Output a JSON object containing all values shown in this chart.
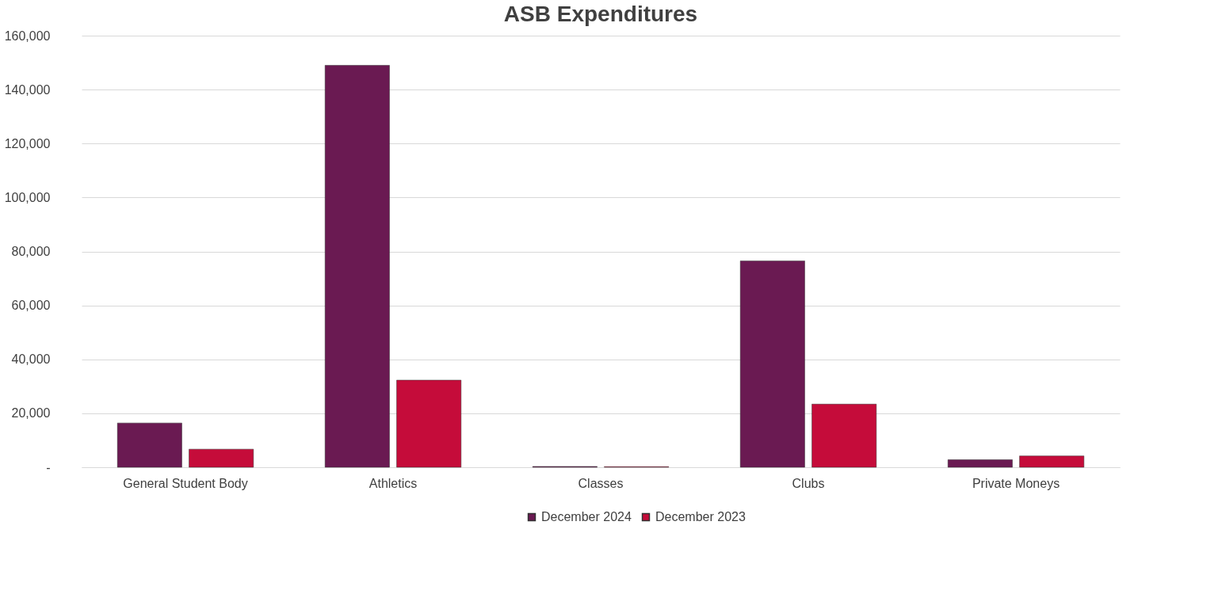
{
  "chart_data": {
    "type": "bar",
    "title": "ASB Expenditures",
    "categories": [
      "General Student Body",
      "Athletics",
      "Classes",
      "Clubs",
      "Private Moneys"
    ],
    "series": [
      {
        "name": "December 2024",
        "color": "#6a1a52",
        "values": [
          16400,
          149000,
          300,
          76500,
          2800
        ]
      },
      {
        "name": "December 2023",
        "color": "#c50c3a",
        "values": [
          6700,
          32300,
          200,
          23400,
          4200
        ]
      }
    ],
    "ylim": [
      0,
      160000
    ],
    "yticks": [
      {
        "value": 0,
        "label": "-"
      },
      {
        "value": 20000,
        "label": "20,000"
      },
      {
        "value": 40000,
        "label": "40,000"
      },
      {
        "value": 60000,
        "label": "60,000"
      },
      {
        "value": 80000,
        "label": "80,000"
      },
      {
        "value": 100000,
        "label": "100,000"
      },
      {
        "value": 120000,
        "label": "120,000"
      },
      {
        "value": 140000,
        "label": "140,000"
      },
      {
        "value": 160000,
        "label": "160,000"
      }
    ],
    "grid": "y",
    "legend": "bottom"
  }
}
